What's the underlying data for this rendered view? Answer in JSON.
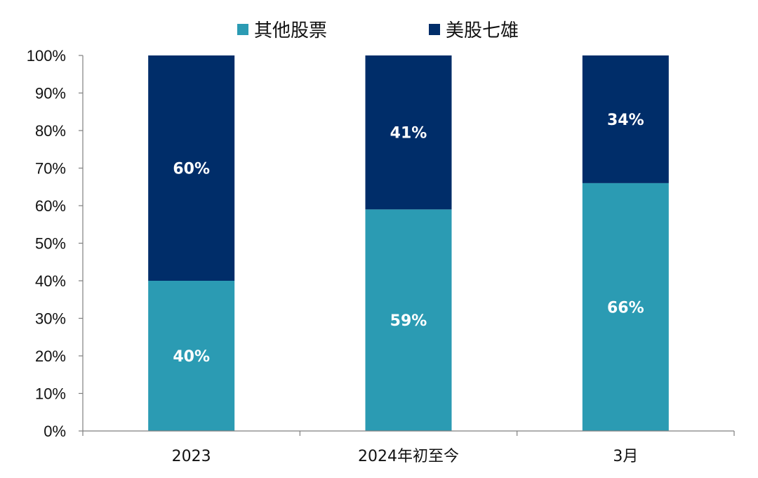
{
  "chart_data": {
    "type": "bar",
    "stacked": true,
    "percent_stacked": true,
    "categories": [
      "2023",
      "2024年初至今",
      "3月"
    ],
    "series": [
      {
        "name": "其他股票",
        "values": [
          40,
          59,
          66
        ],
        "labels": [
          "40%",
          "59%",
          "66%"
        ],
        "color": "#2B9BB3"
      },
      {
        "name": "美股七雄",
        "values": [
          60,
          41,
          34
        ],
        "labels": [
          "60%",
          "41%",
          "34%"
        ],
        "color": "#002D69"
      }
    ],
    "title": "",
    "xlabel": "",
    "ylabel": "",
    "ylim": [
      0,
      100
    ],
    "yticks": [
      "0%",
      "10%",
      "20%",
      "30%",
      "40%",
      "50%",
      "60%",
      "70%",
      "80%",
      "90%",
      "100%"
    ],
    "grid": false,
    "legend": "top-center"
  }
}
